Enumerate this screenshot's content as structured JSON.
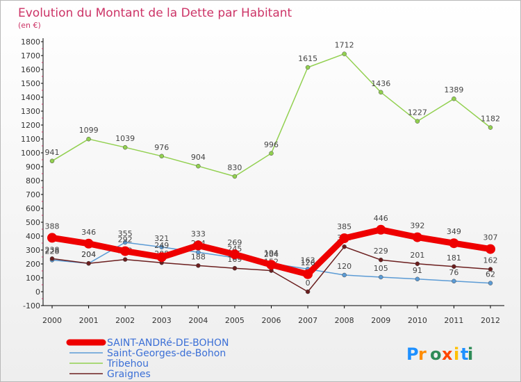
{
  "chart_data": {
    "type": "line",
    "title": "Evolution du Montant de la Dette par Habitant",
    "subtitle": "(en €)",
    "categories": [
      "2000",
      "2001",
      "2002",
      "2003",
      "2004",
      "2005",
      "2006",
      "2007",
      "2008",
      "2009",
      "2010",
      "2011",
      "2012"
    ],
    "ylim": [
      -100,
      1800
    ],
    "yticks": [
      -100,
      0,
      100,
      200,
      300,
      400,
      500,
      600,
      700,
      800,
      900,
      1000,
      1100,
      1200,
      1300,
      1400,
      1500,
      1600,
      1700,
      1800
    ],
    "grid": false,
    "legend_position": "bottom-left",
    "series": [
      {
        "name": "SAINT-ANDRé-DE-BOHON",
        "color": "#ee0000",
        "values": [
          388,
          346,
          292,
          249,
          333,
          269,
          194,
          126,
          385,
          446,
          392,
          349,
          307
        ]
      },
      {
        "name": "Saint-Georges-de-Bohon",
        "color": "#5b9bd5",
        "values": [
          228,
          204,
          355,
          321,
          284,
          245,
          204,
          163,
          120,
          105,
          91,
          76,
          62
        ]
      },
      {
        "name": "Tribehou",
        "color": "#92d050",
        "values": [
          941,
          1099,
          1039,
          976,
          904,
          830,
          996,
          1615,
          1712,
          1436,
          1227,
          1389,
          1182
        ]
      },
      {
        "name": "Graignes",
        "color": "#6b1e1e",
        "values": [
          238,
          204,
          232,
          209,
          188,
          169,
          152,
          0,
          324,
          229,
          201,
          181,
          162
        ]
      }
    ]
  },
  "brand": {
    "letters": [
      "P",
      "r",
      "o",
      "x",
      "i",
      "t",
      "i"
    ],
    "colors": [
      "#1e90ff",
      "#ff8c00",
      "#2e8b57",
      "#ff4500",
      "#ffc000",
      "#1e90ff",
      "#2e8b57"
    ]
  },
  "colors": {
    "title": "#cc3366",
    "axis": "#000000",
    "tick_text": "#333333"
  }
}
